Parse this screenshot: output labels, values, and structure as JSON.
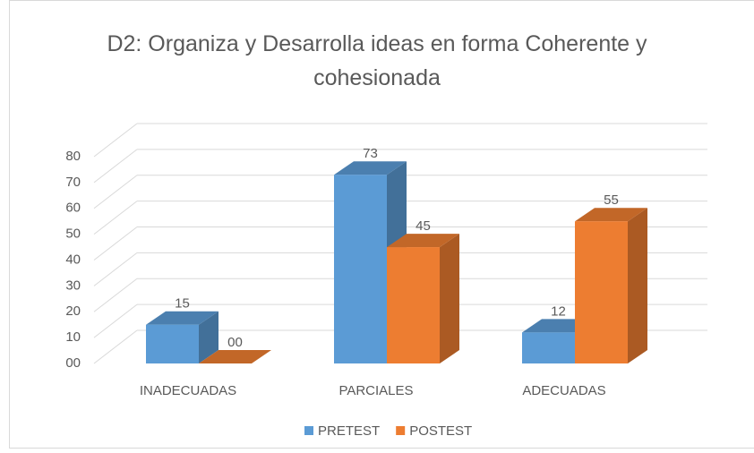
{
  "chart_data": {
    "type": "bar3d",
    "title": "D2: Organiza y Desarrolla ideas en forma Coherente y cohesionada",
    "categories": [
      "INADECUADAS",
      "PARCIALES",
      "ADECUADAS"
    ],
    "series": [
      {
        "name": "PRETEST",
        "color": "#5b9bd5",
        "values": [
          15,
          73,
          12
        ]
      },
      {
        "name": "POSTEST",
        "color": "#ed7d31",
        "values": [
          0,
          45,
          55
        ],
        "value_labels": [
          "00",
          "45",
          "55"
        ]
      }
    ],
    "ylim": [
      0,
      80
    ],
    "yticks": [
      {
        "value": 0,
        "label": "00"
      },
      10,
      20,
      30,
      40,
      50,
      60,
      70,
      80
    ],
    "grid": true,
    "legend": "bottom"
  }
}
